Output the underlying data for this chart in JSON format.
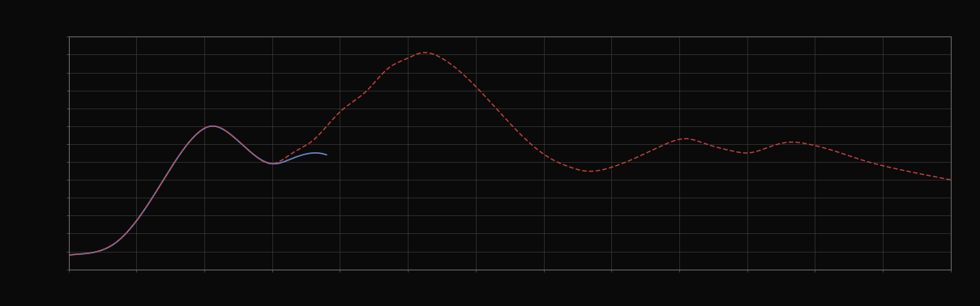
{
  "background_color": "#0a0a0a",
  "plot_bg_color": "#0a0a0a",
  "grid_color": "#444444",
  "line1_color": "#6688cc",
  "line2_color": "#cc4444",
  "figsize": [
    12.09,
    3.78
  ],
  "dpi": 100,
  "xlim": [
    0,
    130
  ],
  "ylim": [
    0,
    130
  ],
  "grid_major_x": 10,
  "grid_major_y": 10
}
